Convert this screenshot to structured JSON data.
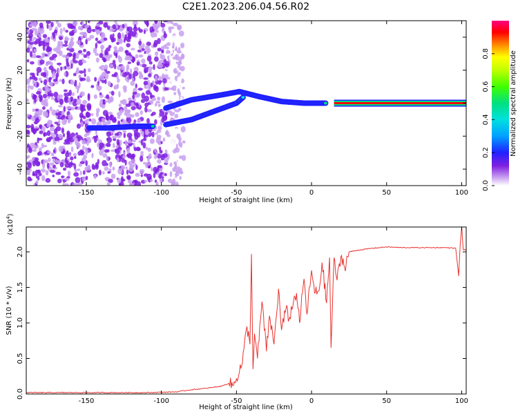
{
  "title": "C2E1.2023.206.04.56.R02",
  "chart_data": [
    {
      "type": "heatmap",
      "panel": "top",
      "xlabel": "Height of straight line (km)",
      "ylabel": "Frequency (Hz)",
      "xlim": [
        -190,
        103
      ],
      "ylim": [
        -50,
        50
      ],
      "xticks": [
        -150,
        -100,
        -50,
        0,
        50,
        100
      ],
      "yticks": [
        -40,
        -20,
        0,
        20,
        40
      ],
      "colorbar": {
        "label": "Normalized spectral amplitude",
        "range": [
          0,
          1
        ],
        "ticks": [
          0.0,
          0.2,
          0.4,
          0.6,
          0.8
        ]
      },
      "features": [
        {
          "name": "carrier line",
          "x_range": [
            15,
            103
          ],
          "frequency_hz": 0,
          "amplitude": 1.0
        },
        {
          "name": "upper branch",
          "points": [
            [
              -97,
              -3
            ],
            [
              -80,
              2
            ],
            [
              -60,
              5
            ],
            [
              -48,
              7
            ],
            [
              -35,
              4
            ],
            [
              -20,
              1
            ],
            [
              -5,
              0
            ],
            [
              10,
              0
            ]
          ]
        },
        {
          "name": "lower branch",
          "points": [
            [
              -97,
              -13
            ],
            [
              -80,
              -10
            ],
            [
              -65,
              -5
            ],
            [
              -50,
              0
            ],
            [
              -45,
              4
            ]
          ]
        },
        {
          "name": "low-altitude echo",
          "points": [
            [
              -148,
              -15
            ],
            [
              -135,
              -15
            ],
            [
              -115,
              -14
            ],
            [
              -105,
              -14
            ]
          ]
        },
        {
          "name": "noise region",
          "x_range": [
            -190,
            -85
          ]
        }
      ]
    },
    {
      "type": "line",
      "panel": "bottom",
      "xlabel": "Height of straight line (km)",
      "ylabel": "SNR (10 * v/v)",
      "multiplier": "(x10",
      "multiplier_exp": "4",
      "multiplier_close": ")",
      "xlim": [
        -190,
        103
      ],
      "ylim": [
        0,
        2.35
      ],
      "xticks": [
        -150,
        -100,
        -50,
        0,
        50,
        100
      ],
      "yticks": [
        0.0,
        0.5,
        1.0,
        1.5,
        2.0
      ],
      "series": [
        {
          "name": "SNR",
          "color": "#e8322e",
          "x": [
            -190,
            -150,
            -110,
            -90,
            -80,
            -70,
            -60,
            -55,
            -52,
            -50,
            -46,
            -43,
            -41,
            -40,
            -39,
            -38,
            -36,
            -33,
            -30,
            -28,
            -25,
            -22,
            -20,
            -17,
            -15,
            -12,
            -10,
            -8,
            -5,
            -3,
            0,
            2,
            5,
            7,
            10,
            12,
            13,
            15,
            17,
            20,
            22,
            25,
            30,
            40,
            50,
            60,
            70,
            80,
            90,
            96,
            98,
            99,
            100,
            101,
            103
          ],
          "y": [
            0.02,
            0.02,
            0.02,
            0.03,
            0.06,
            0.08,
            0.11,
            0.15,
            0.12,
            0.22,
            0.45,
            0.95,
            0.7,
            1.97,
            0.35,
            0.85,
            0.5,
            1.3,
            0.6,
            1.1,
            0.7,
            1.48,
            0.9,
            1.2,
            1.05,
            1.3,
            1.42,
            1.0,
            1.62,
            1.12,
            1.74,
            1.42,
            1.45,
            1.85,
            1.28,
            1.92,
            0.65,
            1.92,
            1.6,
            1.95,
            1.78,
            2.0,
            2.02,
            2.05,
            2.07,
            2.06,
            2.06,
            2.06,
            2.06,
            2.05,
            1.66,
            2.1,
            2.35,
            2.03,
            2.03
          ]
        }
      ]
    }
  ]
}
